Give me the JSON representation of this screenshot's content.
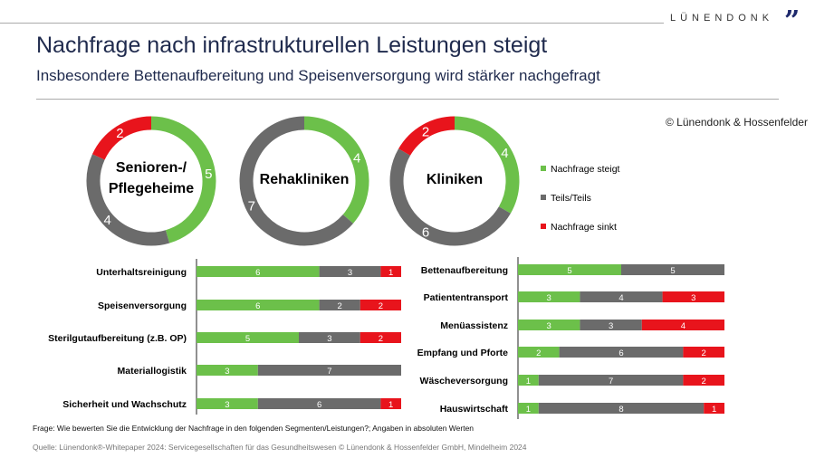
{
  "header": {
    "logo": "LÜNENDONK",
    "title": "Nachfrage nach infrastrukturellen Leistungen steigt",
    "subtitle": "Insbesondere Bettenaufbereitung und Speisenversorgung wird stärker nachgefragt",
    "copyright": "© Lünendonk & Hossenfelder"
  },
  "colors": {
    "steigt": "#6cc04a",
    "teils": "#6b6b6b",
    "sinkt": "#e8141c"
  },
  "chart_data": [
    {
      "type": "pie",
      "variant": "donut",
      "title": "Senioren-/ Pflegeheime",
      "series": [
        {
          "name": "Nachfrage steigt",
          "value": 5
        },
        {
          "name": "Teils/Teils",
          "value": 4
        },
        {
          "name": "Nachfrage sinkt",
          "value": 2
        }
      ]
    },
    {
      "type": "pie",
      "variant": "donut",
      "title": "Rehakliniken",
      "series": [
        {
          "name": "Nachfrage steigt",
          "value": 4
        },
        {
          "name": "Teils/Teils",
          "value": 7
        },
        {
          "name": "Nachfrage sinkt",
          "value": 0
        }
      ]
    },
    {
      "type": "pie",
      "variant": "donut",
      "title": "Kliniken",
      "series": [
        {
          "name": "Nachfrage steigt",
          "value": 4
        },
        {
          "name": "Teils/Teils",
          "value": 6
        },
        {
          "name": "Nachfrage sinkt",
          "value": 2
        }
      ]
    },
    {
      "type": "bar",
      "orientation": "horizontal",
      "stacked": true,
      "categories": [
        "Unterhaltsreinigung",
        "Speisenversorgung",
        "Sterilgutaufbereitung (z.B. OP)",
        "Materiallogistik",
        "Sicherheit und Wachschutz"
      ],
      "series": [
        {
          "name": "Nachfrage steigt",
          "values": [
            6,
            6,
            5,
            3,
            3
          ]
        },
        {
          "name": "Teils/Teils",
          "values": [
            3,
            2,
            3,
            7,
            6
          ]
        },
        {
          "name": "Nachfrage sinkt",
          "values": [
            1,
            2,
            2,
            0,
            1
          ]
        }
      ]
    },
    {
      "type": "bar",
      "orientation": "horizontal",
      "stacked": true,
      "categories": [
        "Bettenaufbereitung",
        "Patiententransport",
        "Menüassistenz",
        "Empfang und Pforte",
        "Wäscheversorgung",
        "Hauswirtschaft"
      ],
      "series": [
        {
          "name": "Nachfrage steigt",
          "values": [
            5,
            3,
            3,
            2,
            1,
            1
          ]
        },
        {
          "name": "Teils/Teils",
          "values": [
            5,
            4,
            3,
            6,
            7,
            8
          ]
        },
        {
          "name": "Nachfrage sinkt",
          "values": [
            0,
            3,
            4,
            2,
            2,
            1
          ]
        }
      ]
    }
  ],
  "legend": [
    "Nachfrage steigt",
    "Teils/Teils",
    "Nachfrage sinkt"
  ],
  "footer": {
    "question": "Frage: Wie bewerten Sie die Entwicklung der Nachfrage in den folgenden Segmenten/Leistungen?; Angaben in absoluten Werten",
    "source": "Quelle: Lünendonk®-Whitepaper 2024: Servicegesellschaften für das Gesundheitswesen © Lünendonk & Hossenfelder GmbH, Mindelheim 2024"
  }
}
